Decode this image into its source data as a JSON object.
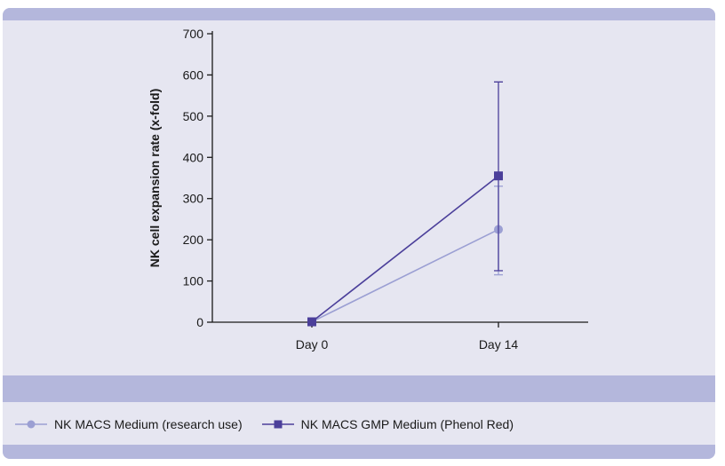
{
  "chart_data": {
    "type": "line",
    "categories": [
      "Day 0",
      "Day 14"
    ],
    "ylabel": "NK cell expansion rate (x-fold)",
    "ylim": [
      0,
      700
    ],
    "yticks": [
      0,
      100,
      200,
      300,
      400,
      500,
      600,
      700
    ],
    "grid": false,
    "legend_placement": "bottom",
    "series": [
      {
        "name": "NK MACS Medium (research use)",
        "values": [
          1,
          225
        ],
        "error_low": [
          1,
          110
        ],
        "error_high": [
          1,
          105
        ],
        "marker": "circle",
        "color": "#9b9fd3"
      },
      {
        "name": "NK MACS GMP Medium (Phenol Red)",
        "values": [
          1,
          355
        ],
        "error_low": [
          1,
          230
        ],
        "error_high": [
          1,
          228
        ],
        "marker": "square",
        "color": "#4b3f9a"
      }
    ]
  }
}
